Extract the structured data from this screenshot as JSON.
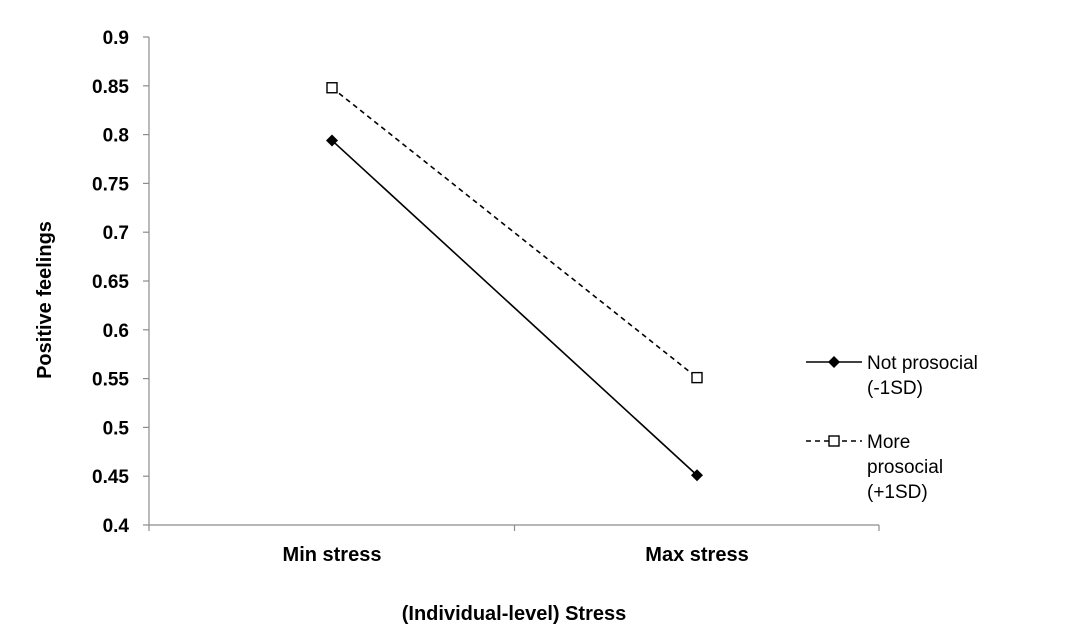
{
  "chart_data": {
    "type": "line",
    "title": "",
    "xlabel": "(Individual-level) Stress",
    "ylabel": "Positive feelings",
    "categories": [
      "Min stress",
      "Max stress"
    ],
    "ylim": [
      0.4,
      0.9
    ],
    "yticks": [
      "0.4",
      "0.45",
      "0.5",
      "0.55",
      "0.6",
      "0.65",
      "0.7",
      "0.75",
      "0.8",
      "0.85",
      "0.9"
    ],
    "grid": false,
    "legend_position": "right",
    "series": [
      {
        "name": "Not prosocial (-1SD)",
        "legend_lines": [
          "Not prosocial",
          "(-1SD)"
        ],
        "values": [
          0.794,
          0.451
        ],
        "line_style": "solid",
        "marker": "diamond-filled",
        "color": "#000000"
      },
      {
        "name": "More prosocial (+1SD)",
        "legend_lines": [
          "More",
          "prosocial",
          "(+1SD)"
        ],
        "values": [
          0.848,
          0.551
        ],
        "line_style": "dashed",
        "marker": "square-open",
        "color": "#000000"
      }
    ]
  }
}
